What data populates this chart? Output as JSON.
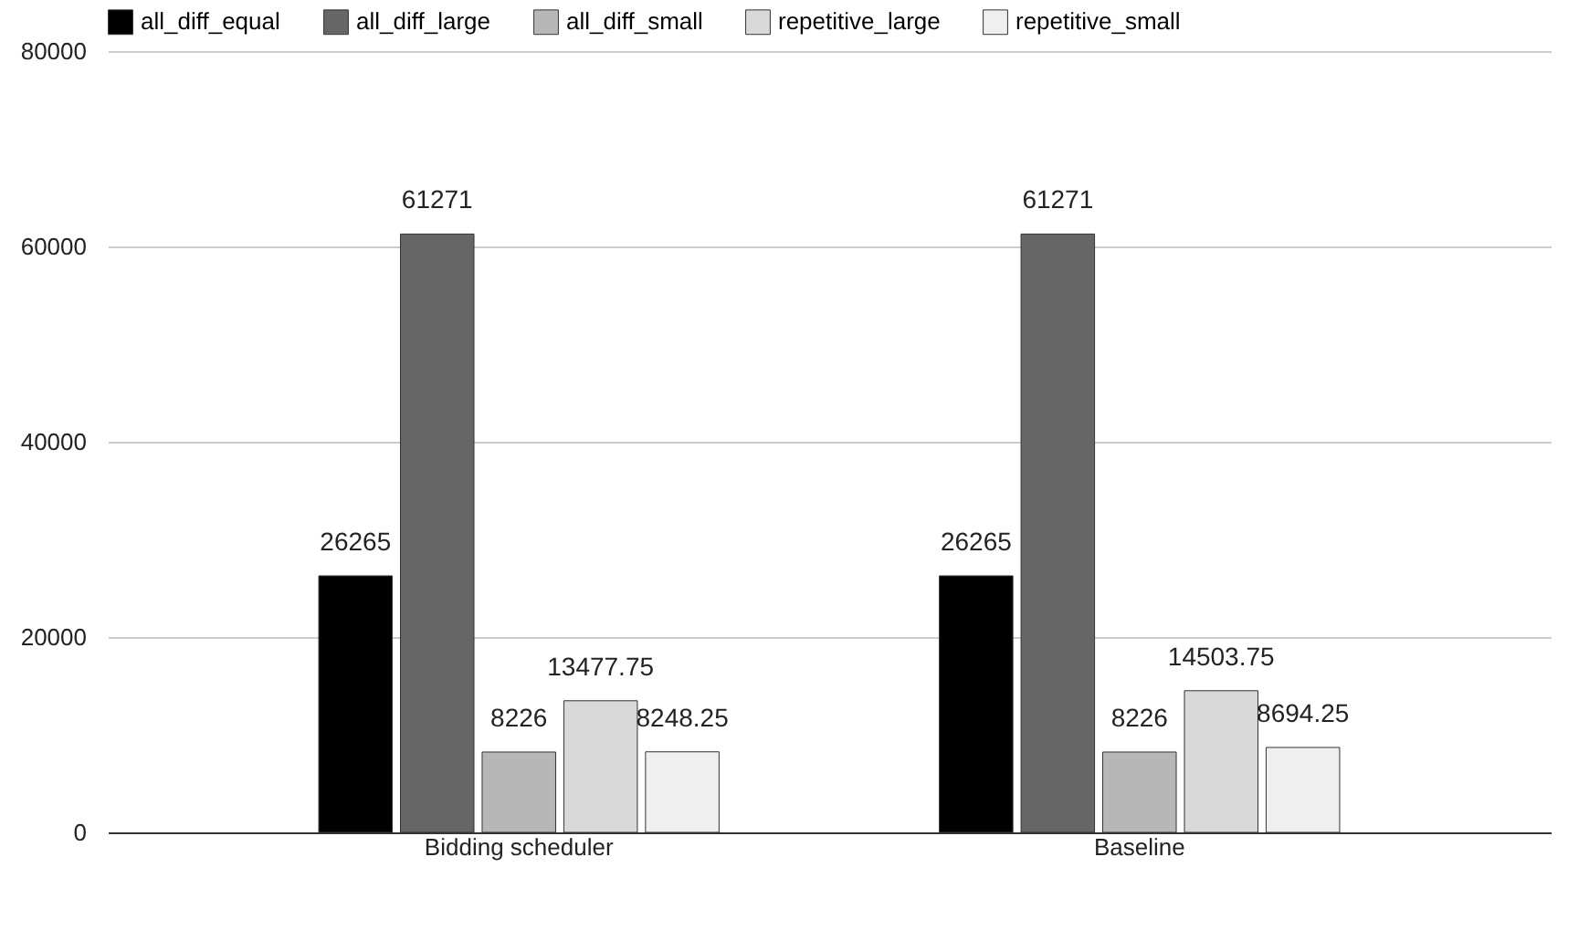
{
  "chart_data": {
    "type": "bar",
    "categories": [
      "Bidding scheduler",
      "Baseline"
    ],
    "series": [
      {
        "name": "all_diff_equal",
        "color": "#000000",
        "values": [
          26265,
          26265
        ]
      },
      {
        "name": "all_diff_large",
        "color": "#666666",
        "values": [
          61271,
          61271
        ]
      },
      {
        "name": "all_diff_small",
        "color": "#b7b7b7",
        "values": [
          8226,
          8226
        ]
      },
      {
        "name": "repetitive_large",
        "color": "#d9d9d9",
        "values": [
          13477.75,
          14503.75
        ]
      },
      {
        "name": "repetitive_small",
        "color": "#efefef",
        "values": [
          8248.25,
          8694.25
        ]
      }
    ],
    "ylim": [
      0,
      80000
    ],
    "yticks": [
      0,
      20000,
      40000,
      60000,
      80000
    ],
    "grid": "y",
    "legend": "top",
    "data_labels": true
  }
}
